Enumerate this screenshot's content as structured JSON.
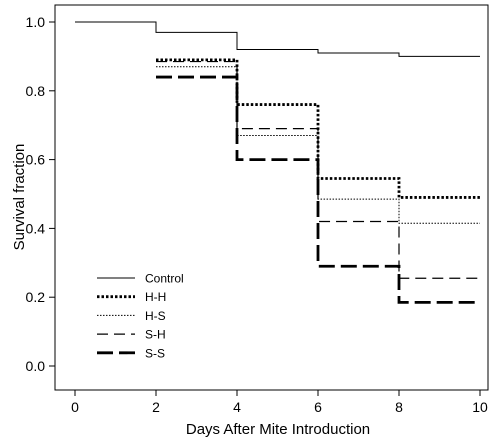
{
  "chart_data": {
    "type": "line",
    "step": true,
    "xlabel": "Days After Mite Introduction",
    "ylabel": "Survival fraction",
    "xlim": [
      0,
      10
    ],
    "ylim": [
      -0.05,
      1.05
    ],
    "xticks": [
      0,
      2,
      4,
      6,
      8,
      10
    ],
    "yticks": [
      0.0,
      0.2,
      0.4,
      0.6,
      0.8,
      1.0
    ],
    "xtick_labels": [
      "0",
      "2",
      "4",
      "6",
      "8",
      "10"
    ],
    "ytick_labels": [
      "0.0",
      "0.2",
      "0.4",
      "0.6",
      "0.8",
      "1.0"
    ],
    "grid": false,
    "legend_position": "bottom-left",
    "series": [
      {
        "name": "Control",
        "style": "solid",
        "weight": "thin",
        "points": [
          [
            0,
            1.0
          ],
          [
            2,
            0.97
          ],
          [
            4,
            0.92
          ],
          [
            6,
            0.91
          ],
          [
            8,
            0.9
          ],
          [
            10,
            0.9
          ]
        ]
      },
      {
        "name": "H-H",
        "style": "dotted",
        "weight": "thick",
        "points": [
          [
            2,
            0.89
          ],
          [
            4,
            0.76
          ],
          [
            6,
            0.545
          ],
          [
            8,
            0.49
          ],
          [
            10,
            0.49
          ]
        ]
      },
      {
        "name": "H-S",
        "style": "dotted",
        "weight": "thin",
        "points": [
          [
            2,
            0.87
          ],
          [
            4,
            0.67
          ],
          [
            6,
            0.485
          ],
          [
            8,
            0.415
          ],
          [
            10,
            0.415
          ]
        ]
      },
      {
        "name": "S-H",
        "style": "dashed",
        "weight": "thin",
        "points": [
          [
            2,
            0.885
          ],
          [
            4,
            0.69
          ],
          [
            6,
            0.42
          ],
          [
            8,
            0.255
          ],
          [
            10,
            0.255
          ]
        ]
      },
      {
        "name": "S-S",
        "style": "dashed",
        "weight": "thick",
        "points": [
          [
            2,
            0.84
          ],
          [
            4,
            0.6
          ],
          [
            6,
            0.29
          ],
          [
            8,
            0.185
          ],
          [
            10,
            0.185
          ]
        ]
      }
    ]
  }
}
